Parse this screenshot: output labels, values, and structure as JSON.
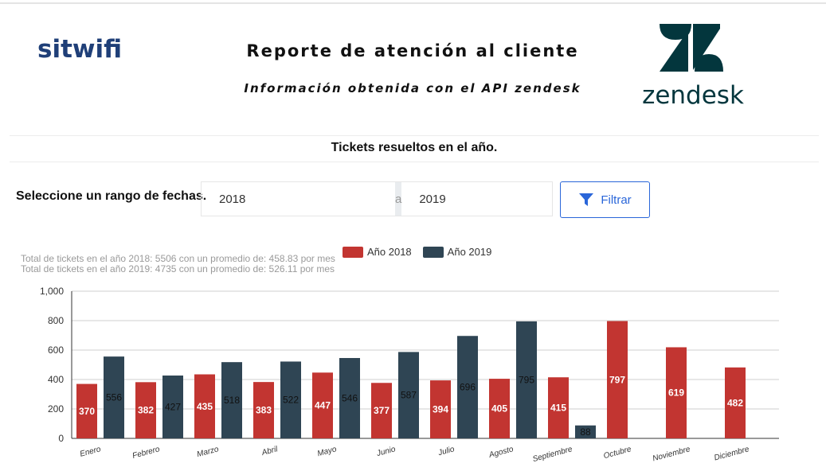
{
  "header": {
    "brand": "sitwifi",
    "title": "Reporte de atención al cliente",
    "subtitle": "Información obtenida con el API zendesk",
    "partner_logo_text": "zendesk",
    "brand_color": "#1f3f78",
    "partner_color": "#03363d"
  },
  "section": {
    "title": "Tickets resueltos en el año."
  },
  "filter": {
    "label": "Seleccione un rango de fechas.",
    "from_value": "2018",
    "separator": "a",
    "to_value": "2019",
    "button_label": "Filtrar",
    "button_icon": "filter-icon",
    "accent": "#2a66d9"
  },
  "stats": [
    "Total de tickets en el año 2018: 5506 con un promedio de: 458.83 por mes",
    "Total de tickets en el año 2019: 4735 con un promedio de: 526.11 por mes"
  ],
  "chart_data": {
    "type": "bar",
    "categories": [
      "Enero",
      "Febrero",
      "Marzo",
      "Abril",
      "Mayo",
      "Junio",
      "Julio",
      "Agosto",
      "Septiembre",
      "Octubre",
      "Noviembre",
      "Diciembre"
    ],
    "series": [
      {
        "name": "Año 2018",
        "color": "#c23531",
        "values": [
          370,
          382,
          435,
          383,
          447,
          377,
          394,
          405,
          415,
          797,
          619,
          482
        ]
      },
      {
        "name": "Año 2019",
        "color": "#2f4554",
        "values": [
          556,
          427,
          518,
          522,
          546,
          587,
          696,
          795,
          88,
          null,
          null,
          null
        ]
      }
    ],
    "ylim": [
      0,
      1000
    ],
    "yticks": [
      "0",
      "200",
      "400",
      "600",
      "800",
      "1,000"
    ],
    "grid": true,
    "legend": "top-center"
  }
}
